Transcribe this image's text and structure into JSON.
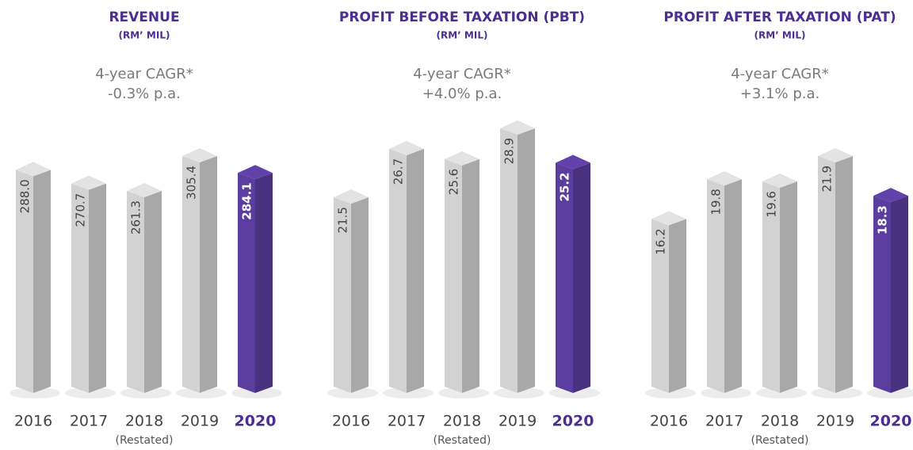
{
  "chart_data": [
    {
      "type": "bar",
      "title": "REVENUE",
      "subtitle": "(RM’ MIL)",
      "cagr_label": "4-year CAGR*",
      "cagr_value": "-0.3% p.a.",
      "categories": [
        "2016",
        "2017",
        "2018",
        "2019",
        "2020"
      ],
      "category_notes": [
        null,
        null,
        "(Restated)",
        null,
        null
      ],
      "values": [
        288.0,
        270.7,
        261.3,
        305.4,
        284.1
      ],
      "value_labels": [
        "288.0",
        "270.7",
        "261.3",
        "305.4",
        "284.1"
      ],
      "colors": [
        "#d2d2d2",
        "#d2d2d2",
        "#d2d2d2",
        "#d2d2d2",
        "#5a3d9e"
      ]
    },
    {
      "type": "bar",
      "title": "PROFIT BEFORE TAXATION (PBT)",
      "subtitle": "(RM’ MIL)",
      "cagr_label": "4-year CAGR*",
      "cagr_value": "+4.0% p.a.",
      "categories": [
        "2016",
        "2017",
        "2018",
        "2019",
        "2020"
      ],
      "category_notes": [
        null,
        null,
        "(Restated)",
        null,
        null
      ],
      "values": [
        21.5,
        26.7,
        25.6,
        28.9,
        25.2
      ],
      "value_labels": [
        "21.5",
        "26.7",
        "25.6",
        "28.9",
        "25.2"
      ],
      "colors": [
        "#d2d2d2",
        "#d2d2d2",
        "#d2d2d2",
        "#d2d2d2",
        "#5a3d9e"
      ]
    },
    {
      "type": "bar",
      "title": "PROFIT AFTER TAXATION (PAT)",
      "subtitle": "(RM’ MIL)",
      "cagr_label": "4-year CAGR*",
      "cagr_value": "+3.1% p.a.",
      "categories": [
        "2016",
        "2017",
        "2018",
        "2019",
        "2020"
      ],
      "category_notes": [
        null,
        null,
        "(Restated)",
        null,
        null
      ],
      "values": [
        16.2,
        19.8,
        19.6,
        21.9,
        18.3
      ],
      "value_labels": [
        "16.2",
        "19.8",
        "19.6",
        "21.9",
        "18.3"
      ],
      "colors": [
        "#d2d2d2",
        "#d2d2d2",
        "#d2d2d2",
        "#d2d2d2",
        "#5a3d9e"
      ]
    }
  ]
}
